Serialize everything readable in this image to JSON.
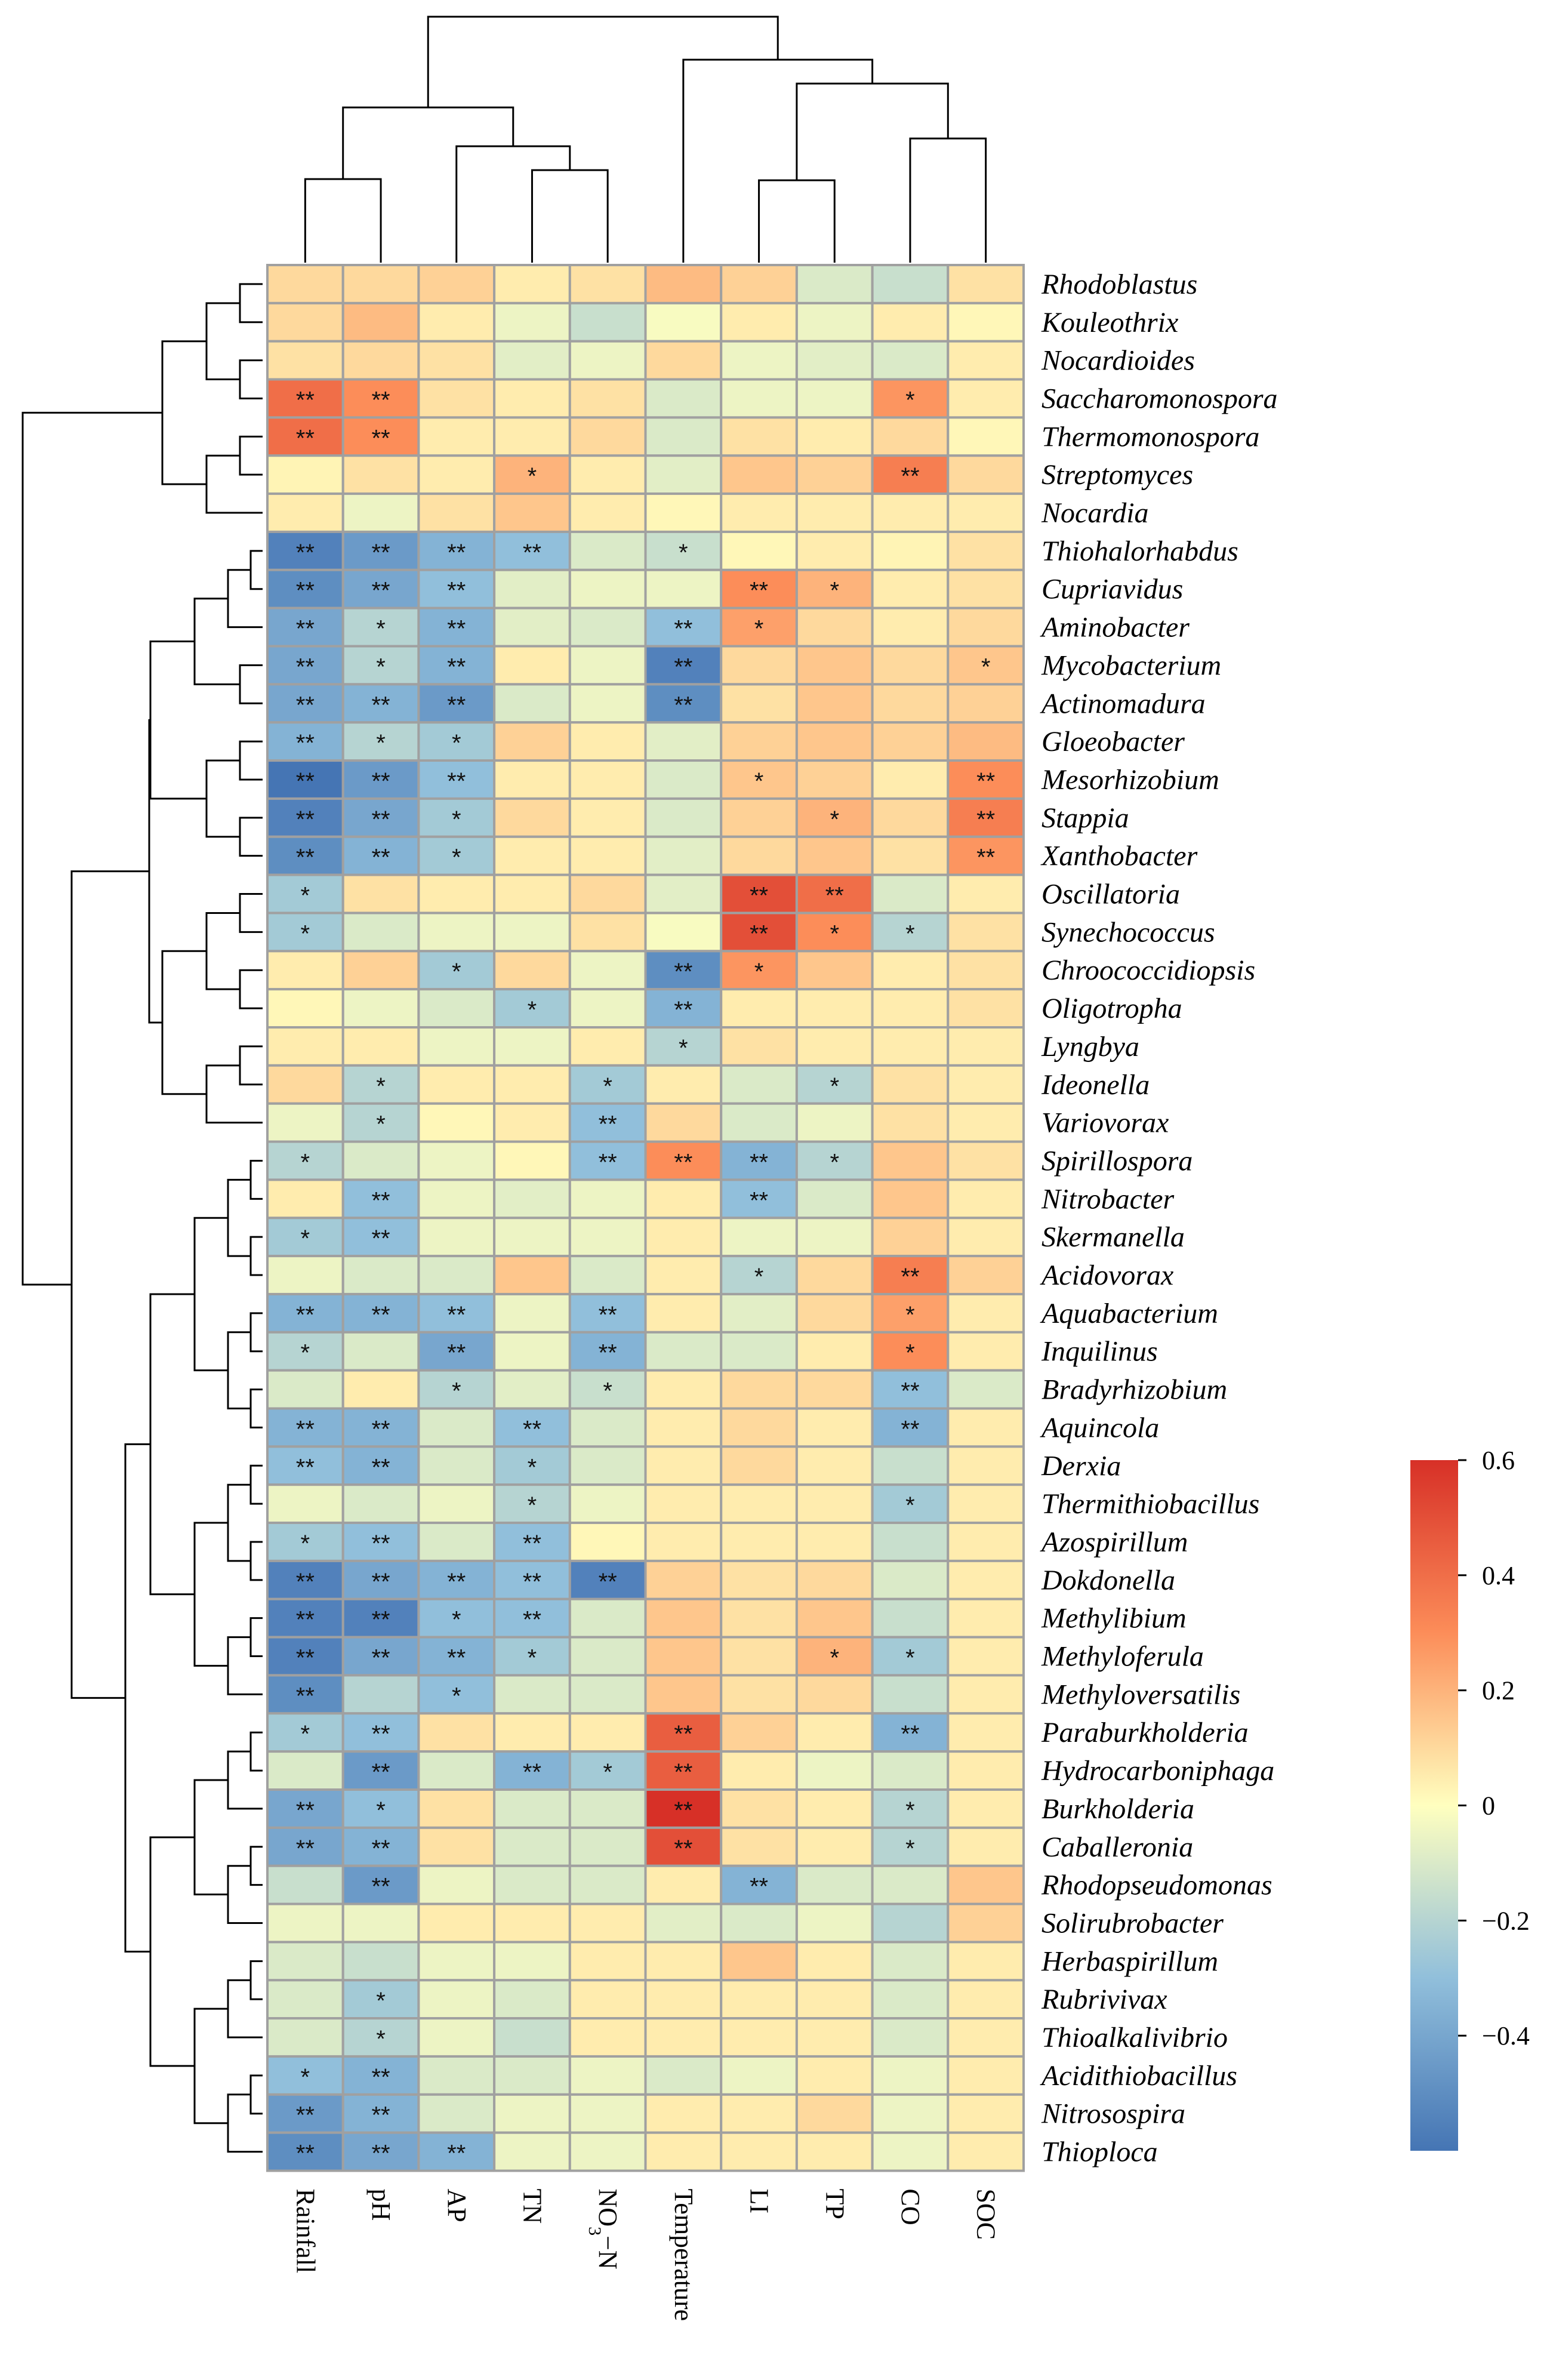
{
  "chart_data": {
    "type": "heatmap",
    "title": "",
    "xlabel": "",
    "ylabel": "",
    "columns": [
      "Rainfall",
      "pH",
      "AP",
      "TN",
      "NO",
      "Temperature",
      "LI",
      "TP",
      "CO",
      "SOC"
    ],
    "column_label_parts": {
      "no3n": {
        "base": "NO",
        "sub": "3",
        "suffix": "−N"
      }
    },
    "rows": [
      "Rhodoblastus",
      "Kouleothrix",
      "Nocardioides",
      "Saccharomonospora",
      "Thermomonospora",
      "Streptomyces",
      "Nocardia",
      "Thiohalorhabdus",
      "Cupriavidus",
      "Aminobacter",
      "Mycobacterium",
      "Actinomadura",
      "Gloeobacter",
      "Mesorhizobium",
      "Stappia",
      "Xanthobacter",
      "Oscillatoria",
      "Synechococcus",
      "Chroococcidiopsis",
      "Oligotropha",
      "Lyngbya",
      "Ideonella",
      "Variovorax",
      "Spirillospora",
      "Nitrobacter",
      "Skermanella",
      "Acidovorax",
      "Aquabacterium",
      "Inquilinus",
      "Bradyrhizobium",
      "Aquincola",
      "Derxia",
      "Thermithiobacillus",
      "Azospirillum",
      "Dokdonella",
      "Methylibium",
      "Methyloferula",
      "Methyloversatilis",
      "Paraburkholderia",
      "Hydrocarboniphaga",
      "Burkholderia",
      "Caballeronia",
      "Rhodopseudomonas",
      "Solirubrobacter",
      "Herbaspirillum",
      "Rubrivivax",
      "Thioalkalivibrio",
      "Acidithiobacillus",
      "Nitrosospira",
      "Thioploca"
    ],
    "values": [
      [
        0.1,
        0.1,
        0.12,
        0.05,
        0.08,
        0.18,
        0.12,
        -0.1,
        -0.15,
        0.08
      ],
      [
        0.1,
        0.18,
        0.05,
        -0.05,
        -0.15,
        -0.02,
        0.05,
        -0.05,
        0.05,
        0.02
      ],
      [
        0.08,
        0.1,
        0.08,
        -0.08,
        -0.05,
        0.1,
        -0.05,
        -0.08,
        -0.1,
        0.05
      ],
      [
        0.4,
        0.3,
        0.08,
        0.05,
        0.08,
        -0.1,
        -0.05,
        -0.05,
        0.28,
        0.05
      ],
      [
        0.4,
        0.3,
        0.05,
        0.05,
        0.1,
        -0.1,
        0.08,
        0.05,
        0.1,
        0.02
      ],
      [
        0.03,
        0.08,
        0.05,
        0.2,
        0.05,
        -0.08,
        0.15,
        0.12,
        0.35,
        0.1
      ],
      [
        0.05,
        -0.05,
        0.08,
        0.15,
        0.05,
        0.02,
        0.05,
        0.05,
        0.05,
        0.05
      ],
      [
        -0.55,
        -0.45,
        -0.35,
        -0.3,
        -0.1,
        -0.15,
        0.02,
        0.05,
        0.03,
        0.08
      ],
      [
        -0.5,
        -0.4,
        -0.3,
        -0.08,
        -0.05,
        -0.05,
        0.3,
        0.2,
        0.05,
        0.08
      ],
      [
        -0.4,
        -0.2,
        -0.35,
        -0.08,
        -0.1,
        -0.3,
        0.25,
        0.1,
        0.05,
        0.1
      ],
      [
        -0.4,
        -0.2,
        -0.35,
        0.05,
        -0.05,
        -0.55,
        0.1,
        0.15,
        0.1,
        0.15
      ],
      [
        -0.4,
        -0.35,
        -0.45,
        -0.1,
        -0.05,
        -0.5,
        0.08,
        0.15,
        0.1,
        0.12
      ],
      [
        -0.35,
        -0.2,
        -0.25,
        0.12,
        0.05,
        -0.08,
        0.12,
        0.15,
        0.12,
        0.18
      ],
      [
        -0.6,
        -0.45,
        -0.3,
        0.05,
        0.05,
        -0.1,
        0.15,
        0.12,
        0.05,
        0.3
      ],
      [
        -0.55,
        -0.4,
        -0.25,
        0.1,
        0.05,
        -0.1,
        0.12,
        0.2,
        0.1,
        0.35
      ],
      [
        -0.5,
        -0.35,
        -0.25,
        0.05,
        0.05,
        -0.08,
        0.1,
        0.15,
        0.08,
        0.28
      ],
      [
        -0.25,
        0.08,
        0.05,
        0.05,
        0.1,
        -0.08,
        0.5,
        0.4,
        -0.1,
        0.05
      ],
      [
        -0.25,
        -0.1,
        -0.05,
        -0.05,
        0.08,
        -0.02,
        0.5,
        0.3,
        -0.2,
        0.08
      ],
      [
        0.05,
        0.12,
        -0.25,
        0.1,
        -0.05,
        -0.5,
        0.28,
        0.15,
        0.05,
        0.08
      ],
      [
        0.02,
        -0.05,
        -0.1,
        -0.25,
        -0.05,
        -0.35,
        0.05,
        0.05,
        0.05,
        0.08
      ],
      [
        0.05,
        0.05,
        -0.05,
        -0.05,
        0.05,
        -0.2,
        0.08,
        0.05,
        0.05,
        0.05
      ],
      [
        0.1,
        -0.2,
        0.05,
        0.05,
        -0.25,
        0.05,
        -0.1,
        -0.2,
        0.08,
        0.05
      ],
      [
        -0.05,
        -0.2,
        0.02,
        0.05,
        -0.3,
        0.1,
        -0.1,
        -0.05,
        0.08,
        0.05
      ],
      [
        -0.2,
        -0.1,
        -0.05,
        0.02,
        -0.3,
        0.3,
        -0.35,
        -0.2,
        0.15,
        0.08
      ],
      [
        0.05,
        -0.3,
        -0.05,
        -0.08,
        -0.05,
        0.05,
        -0.3,
        -0.1,
        0.15,
        0.05
      ],
      [
        -0.25,
        -0.3,
        -0.05,
        -0.05,
        -0.05,
        0.05,
        -0.05,
        -0.05,
        0.12,
        0.05
      ],
      [
        -0.05,
        -0.1,
        -0.1,
        0.15,
        -0.1,
        0.05,
        -0.2,
        0.1,
        0.35,
        0.12
      ],
      [
        -0.35,
        -0.35,
        -0.3,
        -0.05,
        -0.3,
        0.05,
        -0.08,
        0.1,
        0.25,
        0.05
      ],
      [
        -0.2,
        -0.1,
        -0.4,
        -0.05,
        -0.35,
        -0.1,
        -0.1,
        0.05,
        0.3,
        0.05
      ],
      [
        -0.1,
        0.05,
        -0.2,
        -0.08,
        -0.15,
        0.05,
        0.1,
        0.1,
        -0.3,
        -0.1
      ],
      [
        -0.35,
        -0.35,
        -0.1,
        -0.3,
        -0.1,
        0.05,
        0.1,
        0.05,
        -0.35,
        0.05
      ],
      [
        -0.3,
        -0.35,
        -0.1,
        -0.25,
        -0.1,
        0.05,
        0.1,
        0.05,
        -0.15,
        0.05
      ],
      [
        -0.05,
        -0.1,
        -0.05,
        -0.2,
        -0.05,
        0.05,
        0.05,
        0.05,
        -0.25,
        0.05
      ],
      [
        -0.25,
        -0.3,
        -0.1,
        -0.3,
        0.02,
        0.05,
        0.05,
        0.05,
        -0.15,
        0.05
      ],
      [
        -0.55,
        -0.4,
        -0.35,
        -0.3,
        -0.55,
        0.12,
        0.08,
        0.1,
        -0.1,
        0.05
      ],
      [
        -0.55,
        -0.55,
        -0.3,
        -0.3,
        -0.1,
        0.15,
        0.08,
        0.15,
        -0.15,
        0.05
      ],
      [
        -0.55,
        -0.4,
        -0.35,
        -0.25,
        -0.1,
        0.15,
        0.08,
        0.2,
        -0.25,
        0.05
      ],
      [
        -0.5,
        -0.2,
        -0.3,
        -0.1,
        -0.1,
        0.15,
        0.08,
        0.1,
        -0.15,
        0.05
      ],
      [
        -0.25,
        -0.3,
        0.08,
        0.05,
        0.05,
        0.45,
        0.12,
        0.05,
        -0.35,
        0.05
      ],
      [
        -0.1,
        -0.45,
        -0.1,
        -0.35,
        -0.25,
        0.45,
        0.05,
        -0.05,
        -0.1,
        0.05
      ],
      [
        -0.4,
        -0.3,
        0.08,
        -0.1,
        -0.1,
        0.6,
        0.08,
        0.05,
        -0.2,
        0.05
      ],
      [
        -0.4,
        -0.35,
        0.08,
        -0.1,
        -0.1,
        0.5,
        0.08,
        0.05,
        -0.2,
        0.05
      ],
      [
        -0.15,
        -0.45,
        -0.05,
        -0.1,
        -0.1,
        0.05,
        -0.35,
        -0.1,
        -0.1,
        0.15
      ],
      [
        -0.05,
        -0.05,
        0.05,
        0.05,
        0.05,
        -0.08,
        -0.1,
        -0.05,
        -0.2,
        0.12
      ],
      [
        -0.1,
        -0.15,
        -0.05,
        -0.05,
        0.05,
        0.05,
        0.15,
        0.05,
        -0.1,
        0.05
      ],
      [
        -0.1,
        -0.25,
        -0.05,
        -0.1,
        0.05,
        0.05,
        0.05,
        0.05,
        -0.1,
        0.05
      ],
      [
        -0.1,
        -0.2,
        -0.05,
        -0.15,
        0.05,
        0.05,
        0.05,
        0.05,
        -0.1,
        0.05
      ],
      [
        -0.3,
        -0.35,
        -0.1,
        -0.1,
        -0.05,
        -0.1,
        -0.05,
        0.05,
        -0.05,
        0.05
      ],
      [
        -0.45,
        -0.35,
        -0.1,
        -0.05,
        -0.05,
        0.05,
        0.05,
        0.1,
        -0.05,
        0.05
      ],
      [
        -0.5,
        -0.4,
        -0.35,
        -0.05,
        -0.05,
        0.05,
        0.05,
        0.05,
        -0.05,
        0.05
      ]
    ],
    "significance": [
      [
        "",
        "",
        "",
        "",
        "",
        "",
        "",
        "",
        "",
        ""
      ],
      [
        "",
        "",
        "",
        "",
        "",
        "",
        "",
        "",
        "",
        ""
      ],
      [
        "",
        "",
        "",
        "",
        "",
        "",
        "",
        "",
        "",
        ""
      ],
      [
        "**",
        "**",
        "",
        "",
        "",
        "",
        "",
        "",
        "*",
        ""
      ],
      [
        "**",
        "**",
        "",
        "",
        "",
        "",
        "",
        "",
        "",
        ""
      ],
      [
        "",
        "",
        "",
        "*",
        "",
        "",
        "",
        "",
        "**",
        ""
      ],
      [
        "",
        "",
        "",
        "",
        "",
        "",
        "",
        "",
        "",
        ""
      ],
      [
        "**",
        "**",
        "**",
        "**",
        "",
        "*",
        "",
        "",
        "",
        ""
      ],
      [
        "**",
        "**",
        "**",
        "",
        "",
        "",
        "**",
        "*",
        "",
        ""
      ],
      [
        "**",
        "*",
        "**",
        "",
        "",
        "**",
        "*",
        "",
        "",
        ""
      ],
      [
        "**",
        "*",
        "**",
        "",
        "",
        "**",
        "",
        "",
        "",
        "*"
      ],
      [
        "**",
        "**",
        "**",
        "",
        "",
        "**",
        "",
        "",
        "",
        ""
      ],
      [
        "**",
        "*",
        "*",
        "",
        "",
        "",
        "",
        "",
        "",
        ""
      ],
      [
        "**",
        "**",
        "**",
        "",
        "",
        "",
        "*",
        "",
        "",
        "**"
      ],
      [
        "**",
        "**",
        "*",
        "",
        "",
        "",
        "",
        "*",
        "",
        "**"
      ],
      [
        "**",
        "**",
        "*",
        "",
        "",
        "",
        "",
        "",
        "",
        "**"
      ],
      [
        "*",
        "",
        "",
        "",
        "",
        "",
        "**",
        "**",
        "",
        ""
      ],
      [
        "*",
        "",
        "",
        "",
        "",
        "",
        "**",
        "*",
        "*",
        ""
      ],
      [
        "",
        "",
        "*",
        "",
        "",
        "**",
        "*",
        "",
        "",
        ""
      ],
      [
        "",
        "",
        "",
        "*",
        "",
        "**",
        "",
        "",
        "",
        ""
      ],
      [
        "",
        "",
        "",
        "",
        "",
        "*",
        "",
        "",
        "",
        ""
      ],
      [
        "",
        "*",
        "",
        "",
        "*",
        "",
        "",
        "*",
        "",
        ""
      ],
      [
        "",
        "*",
        "",
        "",
        "**",
        "",
        "",
        "",
        "",
        ""
      ],
      [
        "*",
        "",
        "",
        "",
        "**",
        "**",
        "**",
        "*",
        "",
        ""
      ],
      [
        "",
        "**",
        "",
        "",
        "",
        "",
        "**",
        "",
        "",
        ""
      ],
      [
        "*",
        "**",
        "",
        "",
        "",
        "",
        "",
        "",
        "",
        ""
      ],
      [
        "",
        "",
        "",
        "",
        "",
        "",
        "*",
        "",
        "**",
        ""
      ],
      [
        "**",
        "**",
        "**",
        "",
        "**",
        "",
        "",
        "",
        "*",
        ""
      ],
      [
        "*",
        "",
        "**",
        "",
        "**",
        "",
        "",
        "",
        "*",
        ""
      ],
      [
        "",
        "",
        "*",
        "",
        "*",
        "",
        "",
        "",
        "**",
        ""
      ],
      [
        "**",
        "**",
        "",
        "**",
        "",
        "",
        "",
        "",
        "**",
        ""
      ],
      [
        "**",
        "**",
        "",
        "*",
        "",
        "",
        "",
        "",
        "",
        ""
      ],
      [
        "",
        "",
        "",
        "*",
        "",
        "",
        "",
        "",
        "*",
        ""
      ],
      [
        "*",
        "**",
        "",
        "**",
        "",
        "",
        "",
        "",
        "",
        ""
      ],
      [
        "**",
        "**",
        "**",
        "**",
        "**",
        "",
        "",
        "",
        "",
        ""
      ],
      [
        "**",
        "**",
        "*",
        "**",
        "",
        "",
        "",
        "",
        "",
        ""
      ],
      [
        "**",
        "**",
        "**",
        "*",
        "",
        "",
        "",
        "*",
        "*",
        ""
      ],
      [
        "**",
        "",
        "*",
        "",
        "",
        "",
        "",
        "",
        "",
        ""
      ],
      [
        "*",
        "**",
        "",
        "",
        "",
        "**",
        "",
        "",
        "**",
        ""
      ],
      [
        "",
        "**",
        "",
        "**",
        "*",
        "**",
        "",
        "",
        "",
        ""
      ],
      [
        "**",
        "*",
        "",
        "",
        "",
        "**",
        "",
        "",
        "*",
        ""
      ],
      [
        "**",
        "**",
        "",
        "",
        "",
        "**",
        "",
        "",
        "*",
        ""
      ],
      [
        "",
        "**",
        "",
        "",
        "",
        "",
        "**",
        "",
        "",
        ""
      ],
      [
        "",
        "",
        "",
        "",
        "",
        "",
        "",
        "",
        "",
        ""
      ],
      [
        "",
        "",
        "",
        "",
        "",
        "",
        "",
        "",
        "",
        ""
      ],
      [
        "",
        "*",
        "",
        "",
        "",
        "",
        "",
        "",
        "",
        ""
      ],
      [
        "",
        "*",
        "",
        "",
        "",
        "",
        "",
        "",
        "",
        ""
      ],
      [
        "*",
        "**",
        "",
        "",
        "",
        "",
        "",
        "",
        "",
        ""
      ],
      [
        "**",
        "**",
        "",
        "",
        "",
        "",
        "",
        "",
        "",
        ""
      ],
      [
        "**",
        "**",
        "**",
        "",
        "",
        "",
        "",
        "",
        "",
        ""
      ]
    ],
    "colorbar": {
      "range": [
        -0.6,
        0.6
      ],
      "ticks": [
        0.6,
        0.4,
        0.2,
        0,
        -0.2,
        -0.4
      ],
      "tick_labels": [
        "0.6",
        "0.4",
        "0.2",
        "0",
        "−0.2",
        "−0.4"
      ]
    },
    "colors": {
      "low": "#4575b4",
      "mid": "#ffffbf",
      "high": "#d73027",
      "cell_border": "#a0a0a0"
    }
  }
}
